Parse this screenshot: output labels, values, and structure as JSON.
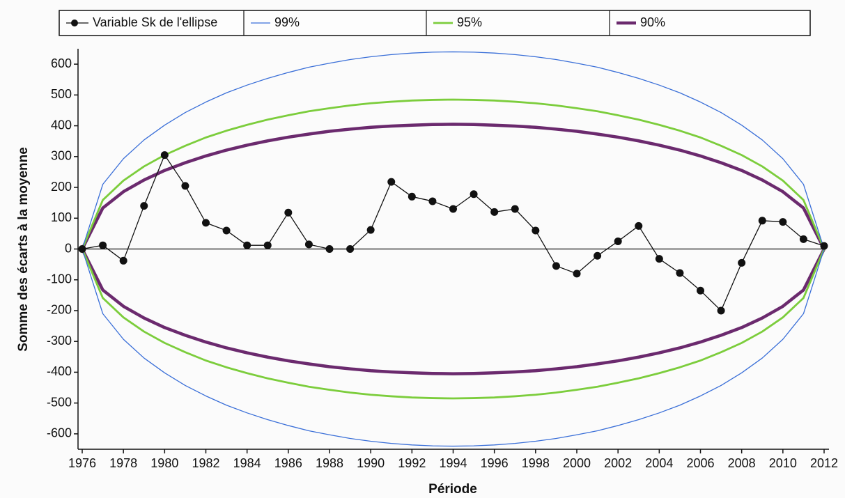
{
  "chart_data": {
    "type": "line",
    "xlabel": "Période",
    "ylabel": "Somme des écarts à la moyenne",
    "x": [
      1976,
      1977,
      1978,
      1979,
      1980,
      1981,
      1982,
      1983,
      1984,
      1985,
      1986,
      1987,
      1988,
      1989,
      1990,
      1991,
      1992,
      1993,
      1994,
      1995,
      1996,
      1997,
      1998,
      1999,
      2000,
      2001,
      2002,
      2003,
      2004,
      2005,
      2006,
      2007,
      2008,
      2009,
      2010,
      2011,
      2012
    ],
    "xlim": [
      1976,
      2012
    ],
    "xticks": [
      1976,
      1978,
      1980,
      1982,
      1984,
      1986,
      1988,
      1990,
      1992,
      1994,
      1996,
      1998,
      2000,
      2002,
      2004,
      2006,
      2008,
      2010,
      2012
    ],
    "ylim": [
      -650,
      650
    ],
    "yticks": [
      -600,
      -500,
      -400,
      -300,
      -200,
      -100,
      0,
      100,
      200,
      300,
      400,
      500,
      600
    ],
    "grid": false,
    "legend": "top",
    "series": [
      {
        "name": "Variable Sk de l'ellipse",
        "color": "#111111",
        "marker": "circle",
        "values": [
          0,
          12,
          -38,
          140,
          305,
          205,
          85,
          60,
          12,
          12,
          118,
          15,
          0,
          0,
          62,
          218,
          170,
          155,
          130,
          178,
          120,
          130,
          60,
          -55,
          -80,
          -22,
          25,
          75,
          -32,
          -78,
          -135,
          -200,
          -45,
          92,
          88,
          32,
          10
        ]
      },
      {
        "name": "99%",
        "color": "#3a6fd8",
        "values": [
          0,
          210,
          293,
          354,
          402,
          443,
          477,
          507,
          532,
          554,
          573,
          590,
          603,
          615,
          624,
          631,
          636,
          639,
          640,
          639,
          636,
          631,
          624,
          615,
          603,
          590,
          573,
          554,
          532,
          507,
          477,
          443,
          402,
          354,
          293,
          210,
          0
        ],
        "lower": [
          0,
          -210,
          -293,
          -354,
          -402,
          -443,
          -477,
          -507,
          -532,
          -554,
          -573,
          -590,
          -603,
          -615,
          -624,
          -631,
          -636,
          -639,
          -640,
          -639,
          -636,
          -631,
          -624,
          -615,
          -603,
          -590,
          -573,
          -554,
          -532,
          -507,
          -477,
          -443,
          -402,
          -354,
          -293,
          -210,
          0
        ]
      },
      {
        "name": "95%",
        "color": "#7ccd3c",
        "values": [
          0,
          159,
          222,
          268,
          305,
          335,
          362,
          384,
          403,
          420,
          434,
          447,
          457,
          466,
          473,
          478,
          482,
          484,
          485,
          484,
          482,
          478,
          473,
          466,
          457,
          447,
          434,
          420,
          403,
          384,
          362,
          335,
          305,
          268,
          222,
          159,
          0
        ],
        "lower": [
          0,
          -159,
          -222,
          -268,
          -305,
          -335,
          -362,
          -384,
          -403,
          -420,
          -434,
          -447,
          -457,
          -466,
          -473,
          -478,
          -482,
          -484,
          -485,
          -484,
          -482,
          -478,
          -473,
          -466,
          -457,
          -447,
          -434,
          -420,
          -403,
          -384,
          -362,
          -335,
          -305,
          -268,
          -222,
          -159,
          0
        ]
      },
      {
        "name": "90%",
        "color": "#6b2a6e",
        "values": [
          0,
          133,
          186,
          224,
          255,
          280,
          302,
          321,
          337,
          351,
          363,
          373,
          382,
          389,
          395,
          399,
          402,
          404,
          405,
          404,
          402,
          399,
          395,
          389,
          382,
          373,
          363,
          351,
          337,
          321,
          302,
          280,
          255,
          224,
          186,
          133,
          0
        ],
        "lower": [
          0,
          -133,
          -186,
          -224,
          -255,
          -280,
          -302,
          -321,
          -337,
          -351,
          -363,
          -373,
          -382,
          -389,
          -395,
          -399,
          -402,
          -404,
          -405,
          -404,
          -402,
          -399,
          -395,
          -389,
          -382,
          -373,
          -363,
          -351,
          -337,
          -321,
          -302,
          -280,
          -255,
          -224,
          -186,
          -133,
          0
        ]
      }
    ]
  }
}
